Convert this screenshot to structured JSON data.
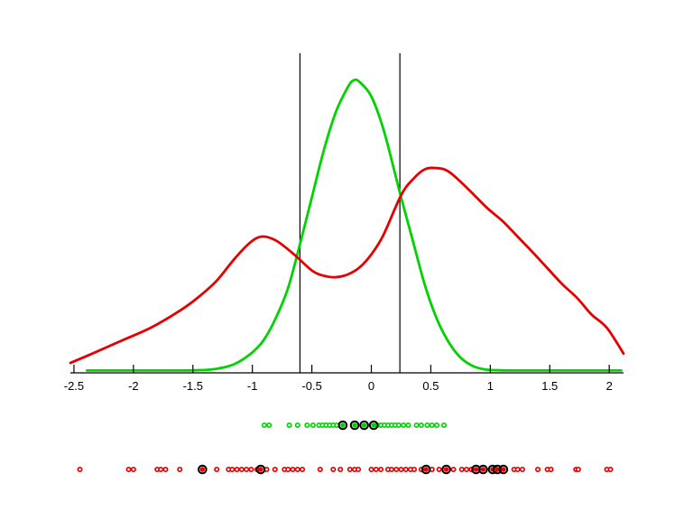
{
  "page": {
    "background_color": "#ffffff"
  },
  "chart_data": {
    "type": "line",
    "title": "",
    "xlabel": "",
    "ylabel": "",
    "grid": false,
    "legend": null,
    "x_axis": {
      "min": -2.53,
      "max": 2.12,
      "ticks": [
        -2.5,
        -2,
        -1.5,
        -1,
        -0.5,
        0,
        0.5,
        1,
        1.5,
        2
      ],
      "tick_labels": [
        "-2.5",
        "-2",
        "-1.5",
        "-1",
        "-0.5",
        "0",
        "0.5",
        "1",
        "1.5",
        "2"
      ],
      "color": "#000000"
    },
    "y_axis": {
      "visible": false,
      "ylim": [
        0,
        1.09
      ]
    },
    "vlines": {
      "name": "threshold-lines",
      "color": "#000000",
      "values": [
        -0.6,
        0.24
      ]
    },
    "series": [
      {
        "name": "green-density-curve",
        "color": "#00d300",
        "points": [
          [
            -2.39,
            0.008
          ],
          [
            -2.0,
            0.008
          ],
          [
            -1.7,
            0.008
          ],
          [
            -1.45,
            0.009
          ],
          [
            -1.3,
            0.014
          ],
          [
            -1.15,
            0.03
          ],
          [
            -1.0,
            0.07
          ],
          [
            -0.9,
            0.115
          ],
          [
            -0.8,
            0.19
          ],
          [
            -0.7,
            0.29
          ],
          [
            -0.6,
            0.44
          ],
          [
            -0.5,
            0.6
          ],
          [
            -0.4,
            0.76
          ],
          [
            -0.3,
            0.89
          ],
          [
            -0.2,
            0.975
          ],
          [
            -0.15,
            1.0
          ],
          [
            -0.1,
            0.995
          ],
          [
            0.0,
            0.945
          ],
          [
            0.1,
            0.835
          ],
          [
            0.2,
            0.68
          ],
          [
            0.25,
            0.6
          ],
          [
            0.35,
            0.45
          ],
          [
            0.45,
            0.3
          ],
          [
            0.55,
            0.185
          ],
          [
            0.65,
            0.105
          ],
          [
            0.75,
            0.052
          ],
          [
            0.85,
            0.024
          ],
          [
            0.95,
            0.012
          ],
          [
            1.05,
            0.009
          ],
          [
            1.2,
            0.008
          ],
          [
            1.6,
            0.008
          ],
          [
            2.1,
            0.008
          ]
        ]
      },
      {
        "name": "red-density-curve",
        "color": "#e60000",
        "points": [
          [
            -2.53,
            0.034
          ],
          [
            -2.35,
            0.065
          ],
          [
            -2.1,
            0.11
          ],
          [
            -1.85,
            0.155
          ],
          [
            -1.6,
            0.215
          ],
          [
            -1.45,
            0.26
          ],
          [
            -1.3,
            0.315
          ],
          [
            -1.15,
            0.39
          ],
          [
            -1.02,
            0.445
          ],
          [
            -0.92,
            0.466
          ],
          [
            -0.8,
            0.452
          ],
          [
            -0.65,
            0.405
          ],
          [
            -0.5,
            0.35
          ],
          [
            -0.4,
            0.332
          ],
          [
            -0.3,
            0.327
          ],
          [
            -0.2,
            0.336
          ],
          [
            -0.1,
            0.36
          ],
          [
            0.0,
            0.405
          ],
          [
            0.1,
            0.47
          ],
          [
            0.25,
            0.607
          ],
          [
            0.35,
            0.662
          ],
          [
            0.45,
            0.696
          ],
          [
            0.55,
            0.7
          ],
          [
            0.65,
            0.688
          ],
          [
            0.8,
            0.634
          ],
          [
            0.97,
            0.565
          ],
          [
            1.1,
            0.52
          ],
          [
            1.22,
            0.47
          ],
          [
            1.35,
            0.415
          ],
          [
            1.48,
            0.358
          ],
          [
            1.6,
            0.305
          ],
          [
            1.73,
            0.256
          ],
          [
            1.85,
            0.2
          ],
          [
            1.98,
            0.154
          ],
          [
            2.12,
            0.066
          ]
        ]
      }
    ],
    "rug_rows": [
      {
        "name": "green-sample-points",
        "color": "#00d300",
        "values": [
          -0.9,
          -0.86,
          -0.69,
          -0.62,
          -0.54,
          -0.49,
          -0.44,
          -0.41,
          -0.38,
          -0.35,
          -0.32,
          -0.29,
          0.05,
          0.08,
          0.11,
          0.14,
          0.17,
          0.2,
          0.23,
          0.27,
          0.31,
          0.38,
          0.42,
          0.47,
          0.51,
          0.55,
          0.61
        ],
        "circled_values": [
          -0.24,
          -0.14,
          -0.06,
          0.02
        ]
      },
      {
        "name": "red-sample-points",
        "color": "#e60000",
        "values": [
          -2.45,
          -2.04,
          -2.0,
          -1.8,
          -1.77,
          -1.73,
          -1.61,
          -1.3,
          -1.2,
          -1.17,
          -1.13,
          -1.09,
          -1.05,
          -1.01,
          -0.96,
          -0.88,
          -0.81,
          -0.73,
          -0.7,
          -0.66,
          -0.62,
          -0.58,
          -0.43,
          -0.32,
          -0.26,
          -0.18,
          -0.14,
          -0.11,
          0.0,
          0.04,
          0.08,
          0.14,
          0.17,
          0.21,
          0.25,
          0.29,
          0.33,
          0.36,
          0.42,
          0.51,
          0.57,
          0.69,
          0.76,
          0.8,
          0.84,
          1.2,
          1.23,
          1.27,
          1.4,
          1.48,
          1.51,
          1.72,
          1.74,
          1.98,
          2.01
        ],
        "circled_values": [
          -1.42,
          -0.93,
          0.46,
          0.63,
          0.88,
          0.94,
          1.02,
          1.06,
          1.11
        ]
      }
    ]
  }
}
